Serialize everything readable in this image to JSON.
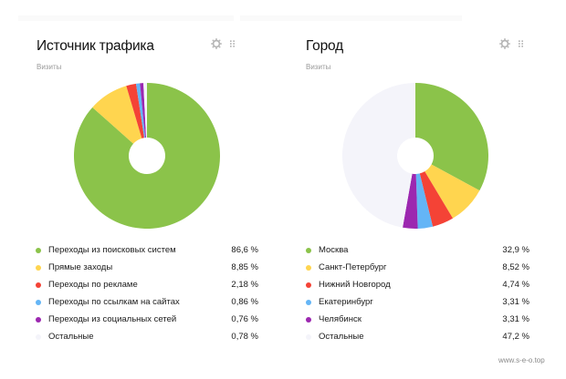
{
  "widgets": [
    {
      "title": "Источник трафика",
      "subtitle": "Визиты",
      "settings_icon": "gear-icon",
      "drag_icon": "grip-icon",
      "legend": [
        {
          "label": "Переходы из поисковых систем",
          "value": "86,6 %",
          "color": "#8bc34a"
        },
        {
          "label": "Прямые заходы",
          "value": "8,85 %",
          "color": "#ffd54f"
        },
        {
          "label": "Переходы по рекламе",
          "value": "2,18 %",
          "color": "#f44336"
        },
        {
          "label": "Переходы по ссылкам на сайтах",
          "value": "0,86 %",
          "color": "#64b5f6"
        },
        {
          "label": "Переходы из социальных сетей",
          "value": "0,76 %",
          "color": "#9c27b0"
        },
        {
          "label": "Остальные",
          "value": "0,78 %",
          "color": "#f4f4fa"
        }
      ]
    },
    {
      "title": "Город",
      "subtitle": "Визиты",
      "settings_icon": "gear-icon",
      "drag_icon": "grip-icon",
      "legend": [
        {
          "label": "Москва",
          "value": "32,9 %",
          "color": "#8bc34a"
        },
        {
          "label": "Санкт-Петербург",
          "value": "8,52 %",
          "color": "#ffd54f"
        },
        {
          "label": "Нижний Новгород",
          "value": "4,74 %",
          "color": "#f44336"
        },
        {
          "label": "Екатеринбург",
          "value": "3,31 %",
          "color": "#64b5f6"
        },
        {
          "label": "Челябинск",
          "value": "3,31 %",
          "color": "#9c27b0"
        },
        {
          "label": "Остальные",
          "value": "47,2 %",
          "color": "#f4f4fa"
        }
      ]
    }
  ],
  "watermark": "www.s-e-o.top",
  "chart_data": [
    {
      "type": "pie",
      "title": "Источник трафика",
      "subtitle": "Визиты",
      "donut": true,
      "categories": [
        "Переходы из поисковых систем",
        "Прямые заходы",
        "Переходы по рекламе",
        "Переходы по ссылкам на сайтах",
        "Переходы из социальных сетей",
        "Остальные"
      ],
      "values": [
        86.6,
        8.85,
        2.18,
        0.86,
        0.76,
        0.78
      ],
      "colors": [
        "#8bc34a",
        "#ffd54f",
        "#f44336",
        "#64b5f6",
        "#9c27b0",
        "#f4f4fa"
      ],
      "legend_position": "bottom"
    },
    {
      "type": "pie",
      "title": "Город",
      "subtitle": "Визиты",
      "donut": true,
      "categories": [
        "Москва",
        "Санкт-Петербург",
        "Нижний Новгород",
        "Екатеринбург",
        "Челябинск",
        "Остальные"
      ],
      "values": [
        32.9,
        8.52,
        4.74,
        3.31,
        3.31,
        47.2
      ],
      "colors": [
        "#8bc34a",
        "#ffd54f",
        "#f44336",
        "#64b5f6",
        "#9c27b0",
        "#f4f4fa"
      ],
      "legend_position": "bottom"
    }
  ]
}
